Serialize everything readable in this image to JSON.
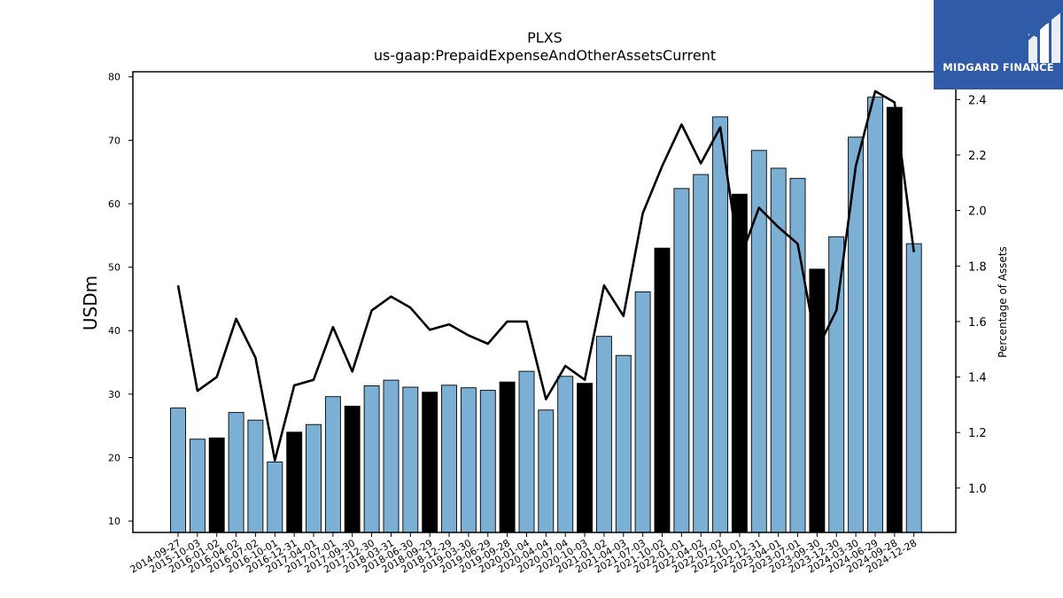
{
  "brand": {
    "logo_text": "MIDGARD FINANCE",
    "logo_icon": "midgard-m-logo-icon",
    "logo_color": "#2f5ba8"
  },
  "chart_data": {
    "type": "bar",
    "title": "PLXS",
    "subtitle": "us-gaap:PrepaidExpenseAndOtherAssetsCurrent",
    "ylabel": "USDm",
    "y2label": "Percentage of Assets",
    "ylim": [
      8.2,
      80.8
    ],
    "y2lim": [
      0.84,
      2.5
    ],
    "yticks": [
      "10",
      "20",
      "30",
      "40",
      "50",
      "60",
      "70",
      "80"
    ],
    "y2ticks": [
      "1.0",
      "1.2",
      "1.4",
      "1.6",
      "1.8",
      "2.0",
      "2.2",
      "2.4"
    ],
    "colors": {
      "bar": "#7bafd4",
      "bar_highlight": "#000000",
      "line": "#000000"
    },
    "categories": [
      "2014-09-27",
      "2015-10-03",
      "2016-01-02",
      "2016-04-02",
      "2016-07-02",
      "2016-10-01",
      "2016-12-31",
      "2017-04-01",
      "2017-07-01",
      "2017-09-30",
      "2017-12-30",
      "2018-03-31",
      "2018-06-30",
      "2018-09-29",
      "2018-12-29",
      "2019-03-30",
      "2019-06-29",
      "2019-09-28",
      "2020-01-04",
      "2020-04-04",
      "2020-07-04",
      "2020-10-03",
      "2021-01-02",
      "2021-04-03",
      "2021-07-03",
      "2021-10-02",
      "2022-01-01",
      "2022-04-02",
      "2022-07-02",
      "2022-10-01",
      "2022-12-31",
      "2023-04-01",
      "2023-07-01",
      "2023-09-30",
      "2023-12-30",
      "2024-03-30",
      "2024-06-29",
      "2024-09-28",
      "2024-12-28"
    ],
    "series": [
      {
        "kind": "bar",
        "axis": "left",
        "values": [
          27.8,
          22.9,
          23.1,
          27.1,
          25.9,
          19.3,
          24.0,
          25.2,
          29.6,
          28.1,
          31.3,
          32.2,
          31.1,
          30.3,
          31.4,
          31.0,
          30.6,
          31.9,
          33.6,
          27.5,
          32.8,
          31.7,
          39.1,
          36.1,
          46.1,
          53.0,
          62.4,
          64.6,
          73.7,
          61.5,
          68.4,
          65.6,
          64.0,
          49.7,
          54.8,
          70.5,
          76.8,
          75.2,
          53.7
        ],
        "highlight": [
          false,
          false,
          true,
          false,
          false,
          false,
          true,
          false,
          false,
          true,
          false,
          false,
          false,
          true,
          false,
          false,
          false,
          true,
          false,
          false,
          false,
          true,
          false,
          false,
          false,
          true,
          false,
          false,
          false,
          true,
          false,
          false,
          false,
          true,
          false,
          false,
          false,
          true,
          false
        ]
      },
      {
        "kind": "line",
        "axis": "right",
        "values": [
          1.73,
          1.35,
          1.4,
          1.61,
          1.47,
          1.1,
          1.37,
          1.39,
          1.58,
          1.42,
          1.64,
          1.69,
          1.65,
          1.57,
          1.59,
          1.55,
          1.52,
          1.6,
          1.6,
          1.32,
          1.44,
          1.39,
          1.73,
          1.62,
          1.99,
          2.16,
          2.31,
          2.17,
          2.3,
          1.82,
          2.01,
          1.94,
          1.88,
          1.5,
          1.64,
          2.16,
          2.43,
          2.39,
          1.85
        ]
      }
    ]
  }
}
